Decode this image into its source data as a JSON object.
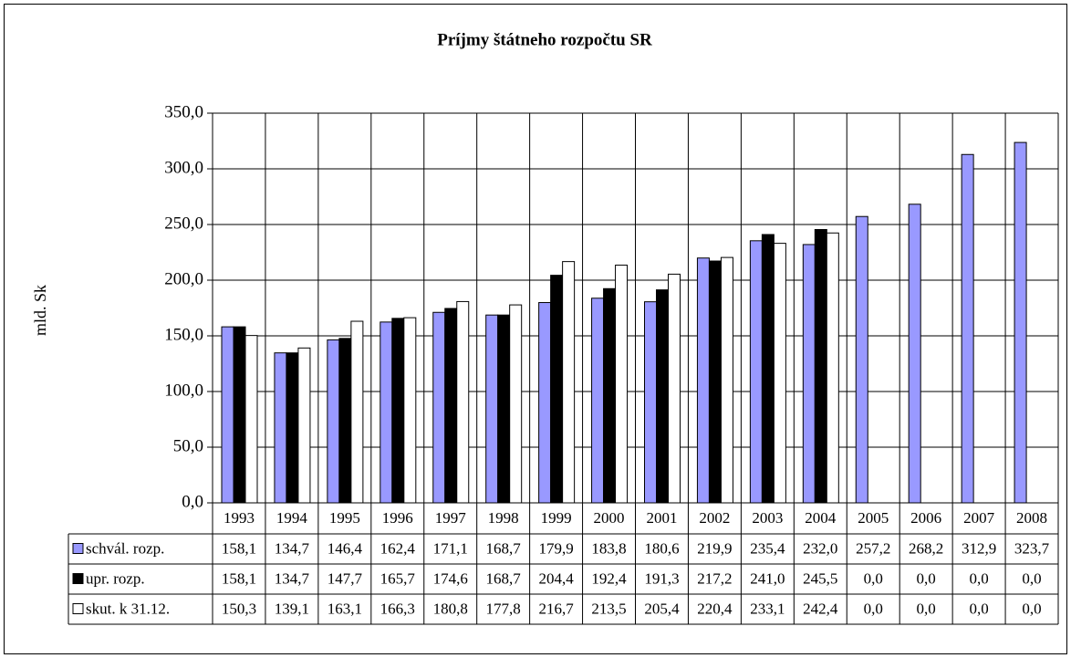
{
  "chart_data": {
    "type": "bar",
    "title": "Príjmy štátneho rozpočtu SR",
    "y_label": "mld. Sk",
    "categories": [
      "1993",
      "1994",
      "1995",
      "1996",
      "1997",
      "1998",
      "1999",
      "2000",
      "2001",
      "2002",
      "2003",
      "2004",
      "2005",
      "2006",
      "2007",
      "2008"
    ],
    "series": [
      {
        "name": "schvál. rozp.",
        "color": "#9999ff",
        "values": [
          158.1,
          134.7,
          146.4,
          162.4,
          171.1,
          168.7,
          179.9,
          183.8,
          180.6,
          219.9,
          235.4,
          232.0,
          257.2,
          268.2,
          312.9,
          323.7
        ],
        "value_labels": [
          "158,1",
          "134,7",
          "146,4",
          "162,4",
          "171,1",
          "168,7",
          "179,9",
          "183,8",
          "180,6",
          "219,9",
          "235,4",
          "232,0",
          "257,2",
          "268,2",
          "312,9",
          "323,7"
        ]
      },
      {
        "name": "upr. rozp.",
        "color": "#000000",
        "values": [
          158.1,
          134.7,
          147.7,
          165.7,
          174.6,
          168.7,
          204.4,
          192.4,
          191.3,
          217.2,
          241.0,
          245.5,
          0.0,
          0.0,
          0.0,
          0.0
        ],
        "value_labels": [
          "158,1",
          "134,7",
          "147,7",
          "165,7",
          "174,6",
          "168,7",
          "204,4",
          "192,4",
          "191,3",
          "217,2",
          "241,0",
          "245,5",
          "0,0",
          "0,0",
          "0,0",
          "0,0"
        ]
      },
      {
        "name": "skut. k 31.12.",
        "color": "#ffffff",
        "values": [
          150.3,
          139.1,
          163.1,
          166.3,
          180.8,
          177.8,
          216.7,
          213.5,
          205.4,
          220.4,
          233.1,
          242.4,
          0.0,
          0.0,
          0.0,
          0.0
        ],
        "value_labels": [
          "150,3",
          "139,1",
          "163,1",
          "166,3",
          "180,8",
          "177,8",
          "216,7",
          "213,5",
          "205,4",
          "220,4",
          "233,1",
          "242,4",
          "0,0",
          "0,0",
          "0,0",
          "0,0"
        ]
      }
    ],
    "ylim": [
      0,
      350
    ],
    "yticks": [
      {
        "value": 0,
        "label": "0,0"
      },
      {
        "value": 50,
        "label": "50,0"
      },
      {
        "value": 100,
        "label": "100,0"
      },
      {
        "value": 150,
        "label": "150,0"
      },
      {
        "value": 200,
        "label": "200,0"
      },
      {
        "value": 250,
        "label": "250,0"
      },
      {
        "value": 300,
        "label": "300,0"
      },
      {
        "value": 350,
        "label": "350,0"
      }
    ],
    "grid": true
  }
}
